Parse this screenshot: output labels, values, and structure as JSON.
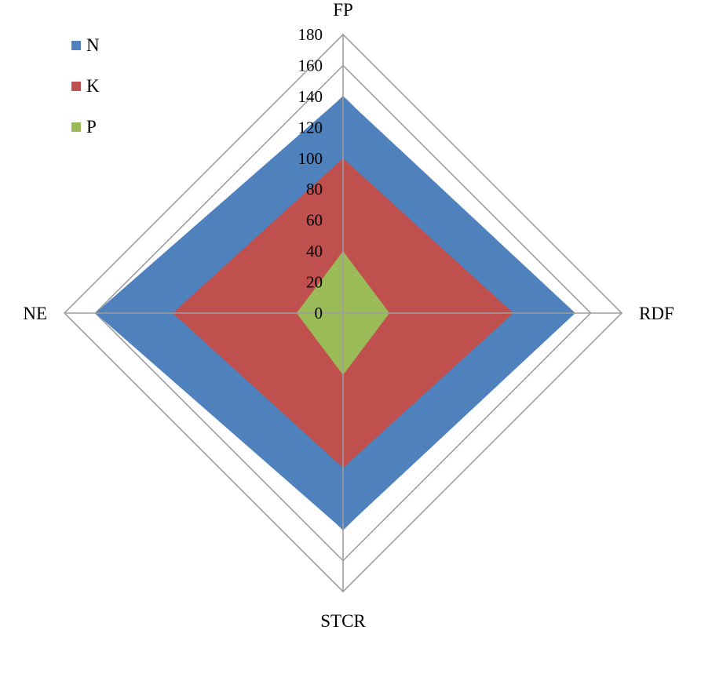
{
  "chart_data": {
    "type": "radar",
    "axes": [
      "FP",
      "RDF",
      "STCR",
      "NE"
    ],
    "series": [
      {
        "name": "N",
        "values": [
          140,
          150,
          140,
          160
        ],
        "color": "#4F81BD"
      },
      {
        "name": "K",
        "values": [
          100,
          110,
          100,
          110
        ],
        "color": "#C0504D"
      },
      {
        "name": "P",
        "values": [
          40,
          30,
          40,
          30
        ],
        "color": "#9BBB59"
      }
    ],
    "rlim": [
      0,
      180
    ],
    "ticks": [
      "0",
      "20",
      "40",
      "60",
      "80",
      "100",
      "120",
      "140",
      "160",
      "180"
    ],
    "grid": true,
    "gridline_color": "#9e9e9e",
    "legend_position": "top-left"
  }
}
